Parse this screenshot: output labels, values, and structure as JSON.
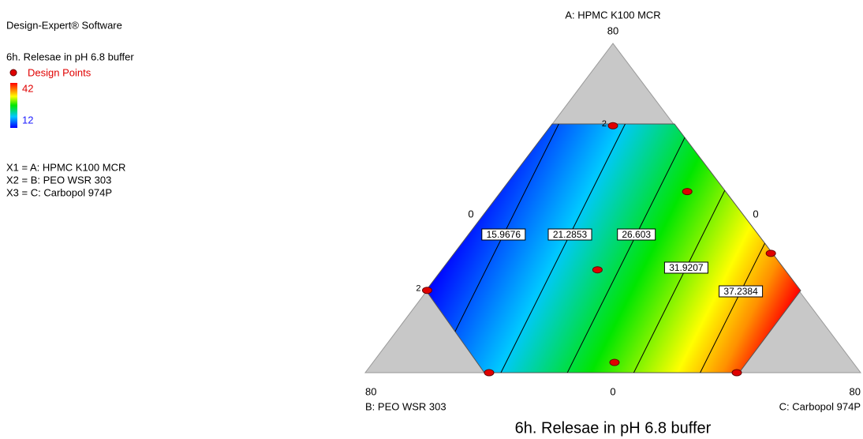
{
  "header": "Design-Expert® Software",
  "chart_data": {
    "type": "ternary-contour",
    "title": "6h. Relesae in pH 6.8 buffer",
    "response": "6h. Relesae in pH 6.8 buffer",
    "legend": {
      "points": "Design Points",
      "high": 42,
      "low": 12
    },
    "factor_list": [
      "X1 = A: HPMC K100 MCR",
      "X2 = B: PEO WSR 303",
      "X3 = C: Carbopol 974P"
    ],
    "components": [
      {
        "label": "A: HPMC K100 MCR",
        "max": 80,
        "min": 0
      },
      {
        "label": "B: PEO WSR 303",
        "max": 80,
        "min": 0
      },
      {
        "label": "C: Carbopol 974P",
        "max": 80,
        "min": 0
      }
    ],
    "contour_levels": [
      15.9676,
      21.2853,
      26.603,
      31.9207,
      37.2384
    ],
    "point_color": "#e00000",
    "points": [
      {
        "A": 60,
        "B": 10,
        "C": 10,
        "replicates": 2
      },
      {
        "A": 20,
        "B": 60,
        "C": 0,
        "replicates": 2
      },
      {
        "A": 44,
        "B": 6,
        "C": 30
      },
      {
        "A": 29,
        "B": 0,
        "C": 51
      },
      {
        "A": 25,
        "B": 30,
        "C": 25
      },
      {
        "A": 0,
        "B": 60,
        "C": 20
      },
      {
        "A": 2.5,
        "B": 38.5,
        "C": 39
      },
      {
        "A": 0,
        "B": 20,
        "C": 60
      }
    ]
  }
}
